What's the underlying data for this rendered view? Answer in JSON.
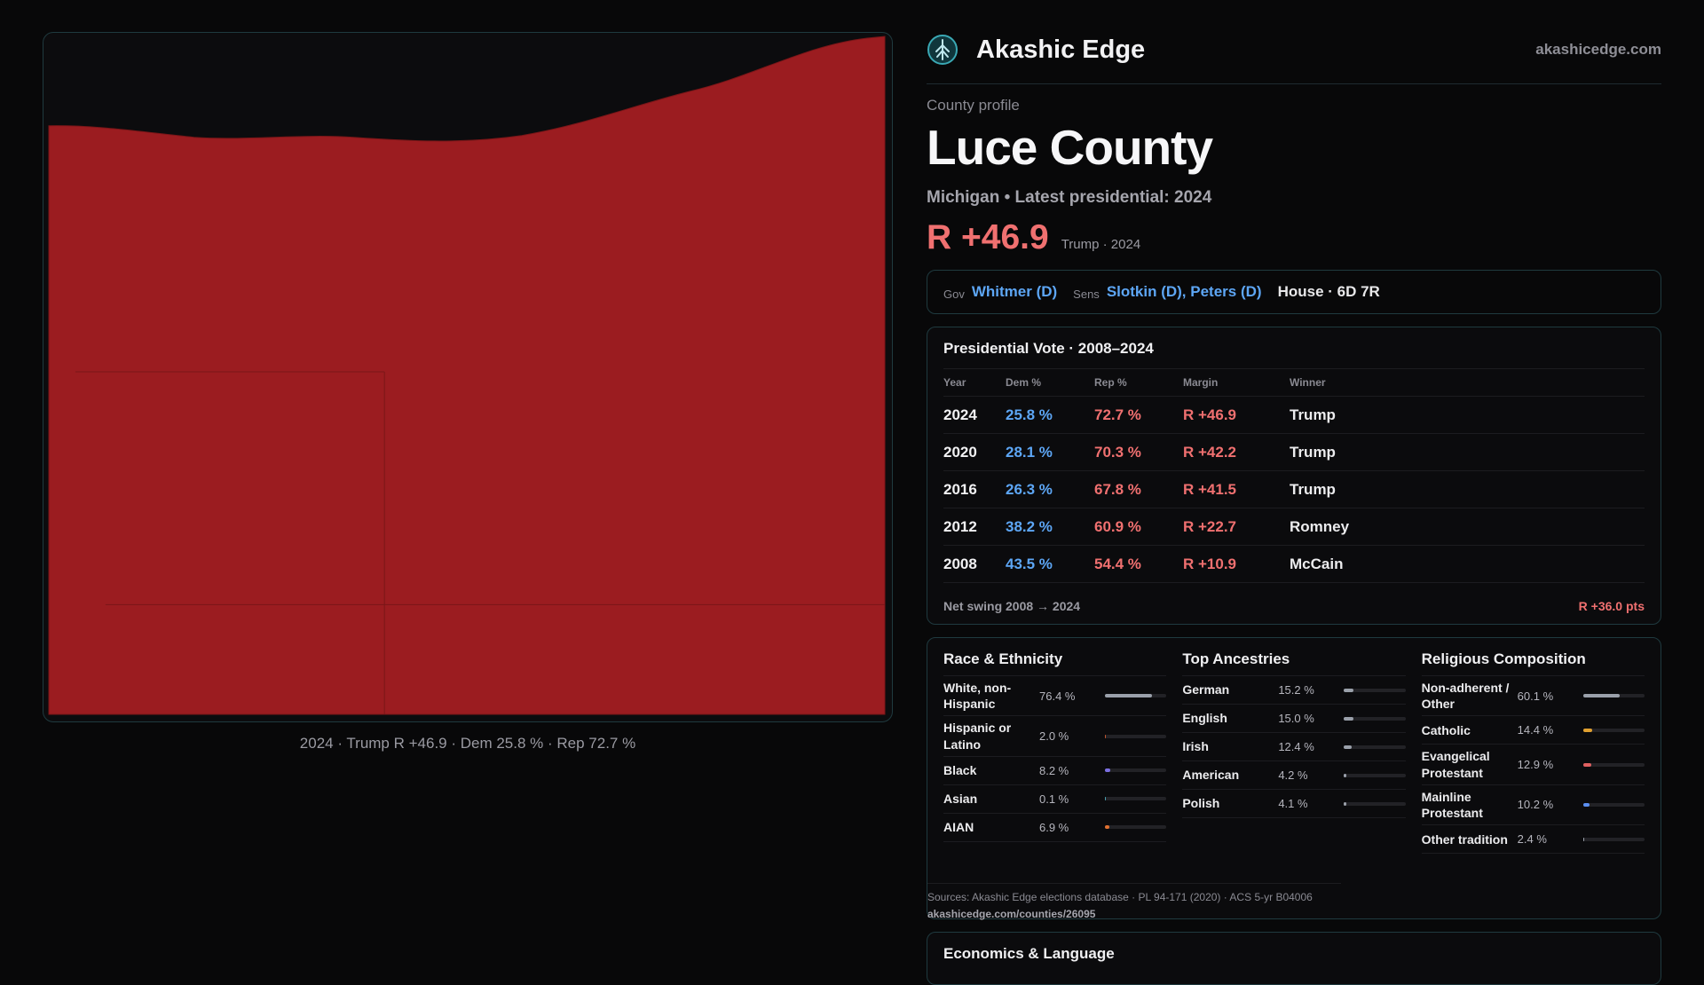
{
  "map": {
    "caption": "2024 · Trump R +46.9 · Dem 25.8 % · Rep 72.7 %",
    "fill_color": "#9b1c20",
    "border_color": "#7a1618"
  },
  "brand": {
    "name": "Akashic Edge",
    "domain": "akashicedge.com",
    "logo": "tree-logo-icon"
  },
  "profile": {
    "kicker": "County profile",
    "county": "Luce County",
    "subtitle": "Michigan • Latest presidential: 2024",
    "margin": "R +46.9",
    "winner_line": "Trump · 2024"
  },
  "officials": {
    "gov_label": "Gov",
    "gov": "Whitmer (D)",
    "sens_label": "Sens",
    "sens": "Slotkin (D), Peters (D)",
    "house": "House · 6D 7R"
  },
  "presidential": {
    "title": "Presidential Vote · 2008–2024",
    "headers": [
      "Year",
      "Dem %",
      "Rep %",
      "Margin",
      "Winner"
    ],
    "rows": [
      {
        "year": "2024",
        "dem": "25.8 %",
        "rep": "72.7 %",
        "margin": "R +46.9",
        "winner": "Trump"
      },
      {
        "year": "2020",
        "dem": "28.1 %",
        "rep": "70.3 %",
        "margin": "R +42.2",
        "winner": "Trump"
      },
      {
        "year": "2016",
        "dem": "26.3 %",
        "rep": "67.8 %",
        "margin": "R +41.5",
        "winner": "Trump"
      },
      {
        "year": "2012",
        "dem": "38.2 %",
        "rep": "60.9 %",
        "margin": "R +22.7",
        "winner": "Romney"
      },
      {
        "year": "2008",
        "dem": "43.5 %",
        "rep": "54.4 %",
        "margin": "R +10.9",
        "winner": "McCain"
      }
    ],
    "swing_label": "Net swing 2008 → 2024",
    "swing_value": "R +36.0 pts"
  },
  "race": {
    "title": "Race & Ethnicity",
    "rows": [
      {
        "label": "White, non-Hispanic",
        "pct": "76.4 %",
        "value": 76.4,
        "color": "#9aa0aa"
      },
      {
        "label": "Hispanic or Latino",
        "pct": "2.0 %",
        "value": 2.0,
        "color": "#c0562f"
      },
      {
        "label": "Black",
        "pct": "8.2 %",
        "value": 8.2,
        "color": "#7b6fe0"
      },
      {
        "label": "Asian",
        "pct": "0.1 %",
        "value": 0.1,
        "color": "#4aa0b0"
      },
      {
        "label": "AIAN",
        "pct": "6.9 %",
        "value": 6.9,
        "color": "#e07030"
      }
    ]
  },
  "ancestry": {
    "title": "Top Ancestries",
    "rows": [
      {
        "label": "German",
        "pct": "15.2 %",
        "value": 15.2,
        "color": "#9aa0aa"
      },
      {
        "label": "English",
        "pct": "15.0 %",
        "value": 15.0,
        "color": "#9aa0aa"
      },
      {
        "label": "Irish",
        "pct": "12.4 %",
        "value": 12.4,
        "color": "#9aa0aa"
      },
      {
        "label": "American",
        "pct": "4.2 %",
        "value": 4.2,
        "color": "#9aa0aa"
      },
      {
        "label": "Polish",
        "pct": "4.1 %",
        "value": 4.1,
        "color": "#9aa0aa"
      }
    ]
  },
  "religion": {
    "title": "Religious Composition",
    "rows": [
      {
        "label": "Non-adherent / Other",
        "pct": "60.1 %",
        "value": 60.1,
        "color": "#9aa0aa"
      },
      {
        "label": "Catholic",
        "pct": "14.4 %",
        "value": 14.4,
        "color": "#e0a030"
      },
      {
        "label": "Evangelical Protestant",
        "pct": "12.9 %",
        "value": 12.9,
        "color": "#e06060"
      },
      {
        "label": "Mainline Protestant",
        "pct": "10.2 %",
        "value": 10.2,
        "color": "#5a8ef0"
      },
      {
        "label": "Other tradition",
        "pct": "2.4 %",
        "value": 2.4,
        "color": "#9aa0aa"
      }
    ]
  },
  "sources": {
    "text": "Sources: Akashic Edge elections database · PL 94-171 (2020) · ACS 5-yr B04006",
    "url": "akashicedge.com/counties/26095"
  },
  "economics": {
    "title": "Economics & Language"
  }
}
